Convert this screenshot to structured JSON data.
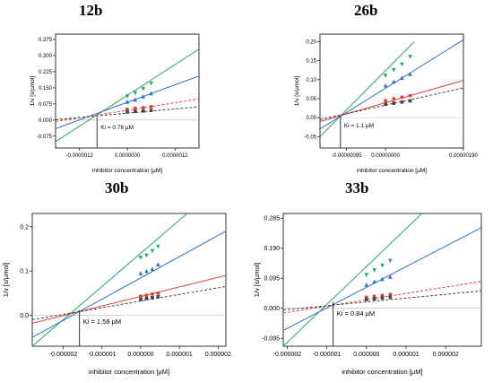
{
  "chart_data": [
    {
      "type": "line",
      "title": "12b",
      "xlabel": "inhibitor concentration [µM]",
      "ylabel": "1/v [s/µmol]",
      "xlim": [
        -1.8e-06,
        1.8e-06
      ],
      "ylim": [
        -0.13,
        0.4
      ],
      "xticks": [
        -1.2e-06,
        0.0,
        1.2e-06
      ],
      "xtick_labels": [
        "-0.0000012",
        "0.0000000",
        "0.0000012"
      ],
      "yticks": [
        -0.075,
        0.0,
        0.075,
        0.15,
        0.225,
        0.3,
        0.375
      ],
      "ytick_labels": [
        "-0.075",
        "0.000",
        "0.075",
        "0.150",
        "0.225",
        "0.300",
        "0.375"
      ],
      "ki": {
        "x": -7.6e-07,
        "y": 0.012,
        "label": "Ki = 0.76 µM"
      },
      "lines": [
        {
          "color": "#22aa66",
          "dashed": false,
          "x": [
            -1.8e-06,
            1.8e-06
          ],
          "y": [
            -0.1,
            0.33
          ]
        },
        {
          "color": "#2f6fc8",
          "dashed": false,
          "x": [
            -1.8e-06,
            1.8e-06
          ],
          "y": [
            -0.04,
            0.205
          ]
        },
        {
          "color": "#e0403a",
          "dashed": true,
          "x": [
            -1.8e-06,
            1.8e-06
          ],
          "y": [
            -0.007,
            0.098
          ]
        },
        {
          "color": "#444444",
          "dashed": true,
          "x": [
            -1.8e-06,
            1.8e-06
          ],
          "y": [
            0.002,
            0.062
          ]
        }
      ],
      "points": [
        {
          "color": "#22aa66",
          "marker": "tri-down",
          "x": [
            0.0,
            2e-07,
            4e-07,
            6e-07
          ],
          "y": [
            0.11,
            0.125,
            0.145,
            0.17
          ]
        },
        {
          "color": "#2f6fc8",
          "marker": "tri-up",
          "x": [
            0.0,
            2e-07,
            4e-07,
            6e-07
          ],
          "y": [
            0.085,
            0.095,
            0.11,
            0.125
          ]
        },
        {
          "color": "#e0403a",
          "marker": "circle",
          "x": [
            0.0,
            2e-07,
            4e-07,
            6e-07
          ],
          "y": [
            0.05,
            0.055,
            0.058,
            0.062
          ]
        },
        {
          "color": "#444444",
          "marker": "square",
          "x": [
            0.0,
            2e-07,
            4e-07,
            6e-07
          ],
          "y": [
            0.038,
            0.04,
            0.042,
            0.045
          ]
        }
      ]
    },
    {
      "type": "line",
      "title": "26b",
      "xlabel": "inhibitor concentration [µM]",
      "ylabel": "1/v [s/µmol]",
      "xlim": [
        -1.6e-06,
        1.9e-06
      ],
      "ylim": [
        -0.08,
        0.22
      ],
      "xticks": [
        -9.5e-07,
        0.0,
        1.9e-06
      ],
      "xtick_labels": [
        "-0.00000095",
        "0.00000000",
        "0.00000190"
      ],
      "yticks": [
        -0.05,
        0.0,
        0.05,
        0.1,
        0.15,
        0.2
      ],
      "ytick_labels": [
        "-0.05",
        "0.00",
        "0.05",
        "0.10",
        "0.15",
        "0.20"
      ],
      "ki": {
        "x": -1.1e-06,
        "y": 0.005,
        "label": "Ki = 1.1 µM"
      },
      "lines": [
        {
          "color": "#22aa66",
          "dashed": false,
          "x": [
            -1.6e-06,
            7e-07
          ],
          "y": [
            -0.05,
            0.2
          ]
        },
        {
          "color": "#2f6fc8",
          "dashed": false,
          "x": [
            -1.6e-06,
            1.9e-06
          ],
          "y": [
            -0.03,
            0.205
          ]
        },
        {
          "color": "#e0403a",
          "dashed": false,
          "x": [
            -1.6e-06,
            1.9e-06
          ],
          "y": [
            -0.01,
            0.098
          ]
        },
        {
          "color": "#444444",
          "dashed": true,
          "x": [
            -1.6e-06,
            1.9e-06
          ],
          "y": [
            -0.005,
            0.078
          ]
        }
      ],
      "points": [
        {
          "color": "#22aa66",
          "marker": "tri-down",
          "x": [
            0.0,
            2e-07,
            4e-07,
            6e-07
          ],
          "y": [
            0.11,
            0.125,
            0.14,
            0.16
          ]
        },
        {
          "color": "#2f6fc8",
          "marker": "tri-up",
          "x": [
            0.0,
            2e-07,
            4e-07,
            6e-07
          ],
          "y": [
            0.085,
            0.095,
            0.105,
            0.115
          ]
        },
        {
          "color": "#e0403a",
          "marker": "circle",
          "x": [
            0.0,
            2e-07,
            4e-07,
            6e-07
          ],
          "y": [
            0.045,
            0.05,
            0.054,
            0.058
          ]
        },
        {
          "color": "#444444",
          "marker": "square",
          "x": [
            0.0,
            2e-07,
            4e-07,
            6e-07
          ],
          "y": [
            0.035,
            0.038,
            0.041,
            0.044
          ]
        }
      ]
    },
    {
      "type": "line",
      "title": "30b",
      "xlabel": "inhibitor concentration [µM]",
      "ylabel": "1/v [s/µmol]",
      "xlim": [
        -2.8e-06,
        2.2e-06
      ],
      "ylim": [
        -0.07,
        0.23
      ],
      "xticks": [
        -2e-06,
        -1e-06,
        0.0,
        1e-06,
        2e-06
      ],
      "xtick_labels": [
        "-0.000002",
        "-0.000001",
        "0.000000",
        "0.000001",
        "0.000002"
      ],
      "yticks": [
        0.0,
        0.1,
        0.2
      ],
      "ytick_labels": [
        "0.0",
        "0.1",
        "0.2"
      ],
      "ki": {
        "x": -1.58e-06,
        "y": 0.012,
        "label": "Ki = 1.58 µM"
      },
      "lines": [
        {
          "color": "#22aa66",
          "dashed": false,
          "x": [
            -2.8e-06,
            1.2e-06
          ],
          "y": [
            -0.07,
            0.23
          ]
        },
        {
          "color": "#2f6fc8",
          "dashed": false,
          "x": [
            -2.8e-06,
            2.2e-06
          ],
          "y": [
            -0.05,
            0.19
          ]
        },
        {
          "color": "#e0403a",
          "dashed": false,
          "x": [
            -2.8e-06,
            2.2e-06
          ],
          "y": [
            -0.018,
            0.09
          ]
        },
        {
          "color": "#444444",
          "dashed": true,
          "x": [
            -2.8e-06,
            2.2e-06
          ],
          "y": [
            -0.01,
            0.065
          ]
        }
      ],
      "points": [
        {
          "color": "#22aa66",
          "marker": "tri-down",
          "x": [
            0.0,
            1.5e-07,
            3e-07,
            4.5e-07
          ],
          "y": [
            0.13,
            0.135,
            0.145,
            0.155
          ]
        },
        {
          "color": "#2f6fc8",
          "marker": "tri-up",
          "x": [
            0.0,
            1.5e-07,
            3e-07,
            4.5e-07
          ],
          "y": [
            0.095,
            0.1,
            0.105,
            0.115
          ]
        },
        {
          "color": "#e0403a",
          "marker": "circle",
          "x": [
            0.0,
            1.5e-07,
            3e-07,
            4.5e-07
          ],
          "y": [
            0.043,
            0.045,
            0.048,
            0.05
          ]
        },
        {
          "color": "#444444",
          "marker": "square",
          "x": [
            0.0,
            1.5e-07,
            3e-07,
            4.5e-07
          ],
          "y": [
            0.036,
            0.038,
            0.04,
            0.042
          ]
        }
      ]
    },
    {
      "type": "line",
      "title": "33b",
      "xlabel": "inhibitor concentration [µM]",
      "ylabel": "1/v [s/µmol]",
      "xlim": [
        -2.1e-06,
        2.9e-06
      ],
      "ylim": [
        -0.12,
        0.3
      ],
      "xticks": [
        -2e-06,
        -1e-06,
        0.0,
        1e-06,
        2e-06
      ],
      "xtick_labels": [
        "-0.000002",
        "-0.000001",
        "0.000000",
        "0.000001",
        "0.000002"
      ],
      "yticks": [
        -0.095,
        0.0,
        0.095,
        0.19,
        0.285
      ],
      "ytick_labels": [
        "-0.095",
        "0.000",
        "0.095",
        "0.190",
        "0.285"
      ],
      "ki": {
        "x": -8.4e-07,
        "y": 0.02,
        "label": "Ki = 0.84 µM"
      },
      "lines": [
        {
          "color": "#22aa66",
          "dashed": false,
          "x": [
            -2.1e-06,
            1.4e-06
          ],
          "y": [
            -0.12,
            0.3
          ]
        },
        {
          "color": "#2f6fc8",
          "dashed": false,
          "x": [
            -2.1e-06,
            2.9e-06
          ],
          "y": [
            -0.07,
            0.255
          ]
        },
        {
          "color": "#e0403a",
          "dashed": true,
          "x": [
            -2.1e-06,
            2.9e-06
          ],
          "y": [
            -0.015,
            0.085
          ]
        },
        {
          "color": "#444444",
          "dashed": true,
          "x": [
            -2.1e-06,
            2.9e-06
          ],
          "y": [
            -0.005,
            0.055
          ]
        }
      ],
      "points": [
        {
          "color": "#22aa66",
          "marker": "tri-down",
          "x": [
            0.0,
            2e-07,
            4e-07,
            6e-07
          ],
          "y": [
            0.105,
            0.12,
            0.135,
            0.15
          ]
        },
        {
          "color": "#2f6fc8",
          "marker": "tri-up",
          "x": [
            0.0,
            2e-07,
            4e-07,
            6e-07
          ],
          "y": [
            0.075,
            0.085,
            0.093,
            0.1
          ]
        },
        {
          "color": "#e0403a",
          "marker": "circle",
          "x": [
            0.0,
            2e-07,
            4e-07,
            6e-07
          ],
          "y": [
            0.035,
            0.038,
            0.041,
            0.044
          ]
        },
        {
          "color": "#444444",
          "marker": "square",
          "x": [
            0.0,
            2e-07,
            4e-07,
            6e-07
          ],
          "y": [
            0.028,
            0.03,
            0.033,
            0.035
          ]
        }
      ]
    }
  ]
}
